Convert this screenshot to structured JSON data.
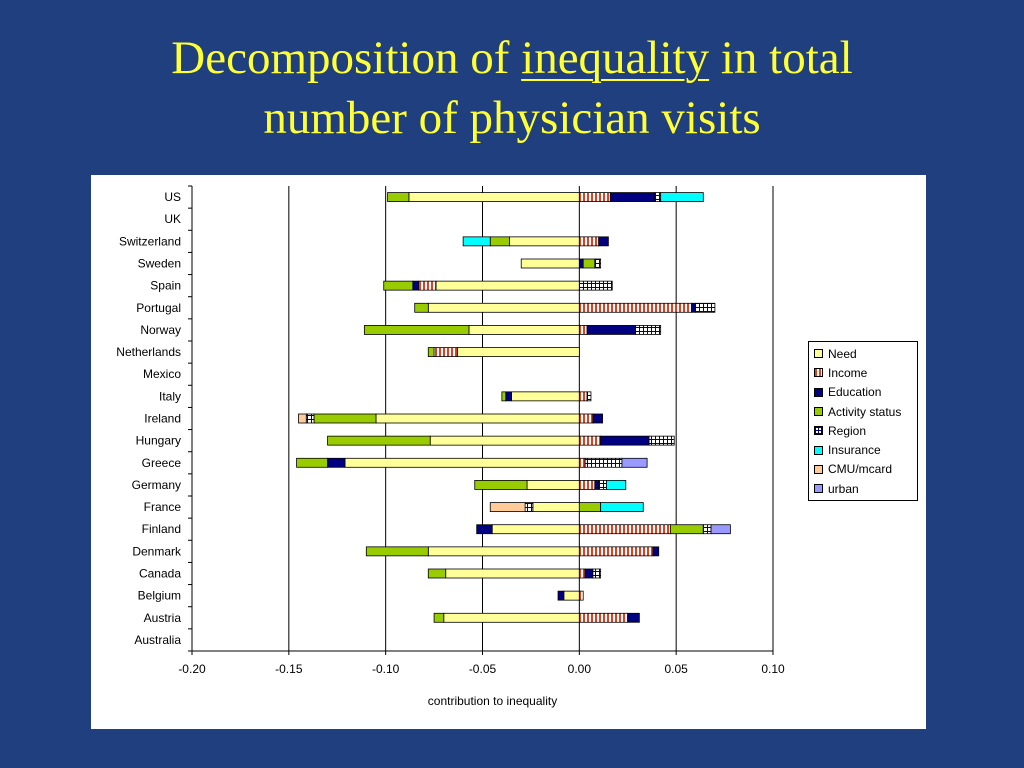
{
  "title": {
    "part1": "Decomposition of ",
    "part2": "inequality",
    "part3": " in total",
    "line2": "number of physician visits"
  },
  "chart_data": {
    "type": "bar",
    "orientation": "horizontal",
    "stacked": true,
    "xlabel": "contribution to inequality",
    "xlim": [
      -0.2,
      0.1
    ],
    "xticks": [
      "-0.20",
      "-0.15",
      "-0.10",
      "-0.05",
      "0.00",
      "0.05",
      "0.10"
    ],
    "xtick_values": [
      -0.2,
      -0.15,
      -0.1,
      -0.05,
      0.0,
      0.05,
      0.1
    ],
    "vertical_gridlines": true,
    "legend_position": "right",
    "categories": [
      "US",
      "UK",
      "Switzerland",
      "Sweden",
      "Spain",
      "Portugal",
      "Norway",
      "Netherlands",
      "Mexico",
      "Italy",
      "Ireland",
      "Hungary",
      "Greece",
      "Germany",
      "France",
      "Finland",
      "Denmark",
      "Canada",
      "Belgium",
      "Austria",
      "Australia"
    ],
    "series": [
      {
        "name": "Need",
        "color": "#ffff99",
        "pattern": "none",
        "values": [
          -0.088,
          0,
          -0.036,
          -0.03,
          -0.074,
          -0.078,
          -0.057,
          -0.063,
          0,
          -0.035,
          -0.105,
          -0.077,
          -0.121,
          -0.027,
          -0.024,
          -0.045,
          -0.078,
          -0.069,
          -0.008,
          -0.07,
          0
        ]
      },
      {
        "name": "Income",
        "color": "#ffffff",
        "pattern": "vstripe-red",
        "values": [
          0.016,
          0,
          0.01,
          0,
          -0.009,
          0.058,
          0.004,
          -0.012,
          0,
          0.004,
          0.007,
          0.011,
          0.003,
          0.008,
          0,
          0.047,
          0.038,
          0.003,
          0.002,
          0.025,
          0
        ]
      },
      {
        "name": "Education",
        "color": "#000080",
        "pattern": "none",
        "values": [
          0.023,
          0,
          0.005,
          0.002,
          -0.003,
          0.002,
          0.025,
          0,
          0,
          -0.003,
          0.005,
          0.025,
          -0.009,
          0.002,
          0,
          -0.008,
          0.003,
          0.004,
          -0.003,
          0.006,
          0
        ]
      },
      {
        "name": "Activity status",
        "color": "#99cc00",
        "pattern": "none",
        "values": [
          -0.011,
          0,
          -0.01,
          0.006,
          -0.015,
          -0.007,
          -0.054,
          -0.003,
          0,
          -0.002,
          -0.032,
          -0.053,
          -0.016,
          -0.027,
          0.011,
          0.017,
          -0.032,
          -0.009,
          0,
          -0.005,
          0
        ]
      },
      {
        "name": "Region",
        "color": "#ffffff",
        "pattern": "grid-navy",
        "values": [
          0.003,
          0,
          0,
          0.003,
          0.017,
          0.01,
          0.013,
          0,
          0,
          0.002,
          -0.004,
          0.013,
          0.019,
          0.004,
          -0.004,
          0.004,
          0,
          0.004,
          0,
          0,
          0
        ]
      },
      {
        "name": "Insurance",
        "color": "#00ffff",
        "pattern": "none",
        "values": [
          0.022,
          0,
          -0.014,
          0,
          0,
          0,
          0,
          0,
          0,
          0,
          0,
          0,
          0,
          0.01,
          0.022,
          0,
          0,
          0,
          0,
          0,
          0
        ]
      },
      {
        "name": "CMU/mcard",
        "color": "#ffcc99",
        "pattern": "none",
        "values": [
          0,
          0,
          0,
          0,
          0,
          0,
          0,
          0,
          0,
          0,
          -0.004,
          0,
          0,
          0,
          -0.018,
          0,
          0,
          0,
          0,
          0,
          0
        ]
      },
      {
        "name": "urban",
        "color": "#9999ff",
        "pattern": "none",
        "values": [
          0,
          0,
          0,
          0,
          0,
          0,
          0,
          0,
          0,
          0,
          0,
          0,
          0.013,
          0,
          0,
          0.01,
          0,
          0,
          0,
          0,
          0
        ]
      }
    ]
  }
}
